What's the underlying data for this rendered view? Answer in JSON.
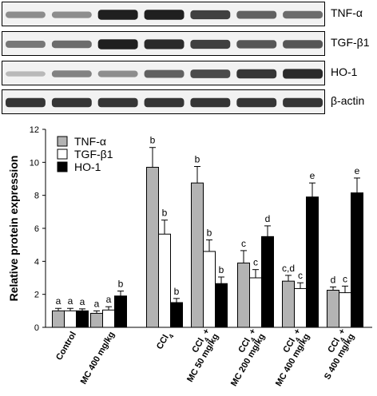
{
  "blots": [
    {
      "label": "TNF-α",
      "intensity": [
        0.45,
        0.45,
        0.95,
        0.95,
        0.8,
        0.65,
        0.6
      ]
    },
    {
      "label": "TGF-β1",
      "intensity": [
        0.55,
        0.6,
        0.95,
        0.9,
        0.8,
        0.7,
        0.7
      ]
    },
    {
      "label": "HO-1",
      "intensity": [
        0.25,
        0.5,
        0.45,
        0.65,
        0.75,
        0.85,
        0.9
      ]
    },
    {
      "label": "β-actin",
      "intensity": [
        0.85,
        0.85,
        0.85,
        0.85,
        0.85,
        0.85,
        0.85
      ]
    }
  ],
  "chart_data": {
    "type": "bar",
    "ylabel": "Relative protein expression",
    "ylim": [
      0,
      12
    ],
    "yticks": [
      "0",
      "2",
      "4",
      "6",
      "8",
      "10",
      "12"
    ],
    "categories": [
      {
        "line1": "Control",
        "line2": ""
      },
      {
        "line1": "MC 400 mg/kg",
        "line2": ""
      },
      {
        "line1": "CCl4",
        "line2": ""
      },
      {
        "line1": "CCl4 +",
        "line2": "MC 50 mg/kg"
      },
      {
        "line1": "CCl4 +",
        "line2": "MC 200 mg/kg"
      },
      {
        "line1": "CCl4 +",
        "line2": "MC 400 mg/kg"
      },
      {
        "line1": "CCl4 +",
        "line2": "S 400 mg/kg"
      }
    ],
    "series": [
      {
        "name": "TNF-α",
        "color": "#b3b3b3",
        "values": [
          1.0,
          0.85,
          9.7,
          8.75,
          3.9,
          2.8,
          2.25
        ],
        "errors": [
          0.15,
          0.15,
          1.2,
          1.0,
          0.75,
          0.35,
          0.2
        ],
        "labels": [
          "a",
          "a",
          "b",
          "b",
          "c",
          "c,d",
          "d"
        ]
      },
      {
        "name": "TGF-β1",
        "color": "#ffffff",
        "values": [
          1.0,
          1.05,
          5.65,
          4.6,
          3.0,
          2.35,
          2.1
        ],
        "errors": [
          0.15,
          0.2,
          0.85,
          0.7,
          0.5,
          0.35,
          0.4
        ],
        "labels": [
          "a",
          "a",
          "b",
          "b",
          "c",
          "c",
          "c"
        ]
      },
      {
        "name": "HO-1",
        "color": "#000000",
        "values": [
          1.0,
          1.9,
          1.5,
          2.65,
          5.5,
          7.9,
          8.15
        ],
        "errors": [
          0.12,
          0.3,
          0.25,
          0.4,
          0.65,
          0.85,
          0.9
        ],
        "labels": [
          "a",
          "b",
          "b",
          "b",
          "d",
          "e",
          "e"
        ]
      }
    ],
    "legend_position": "top-left"
  }
}
